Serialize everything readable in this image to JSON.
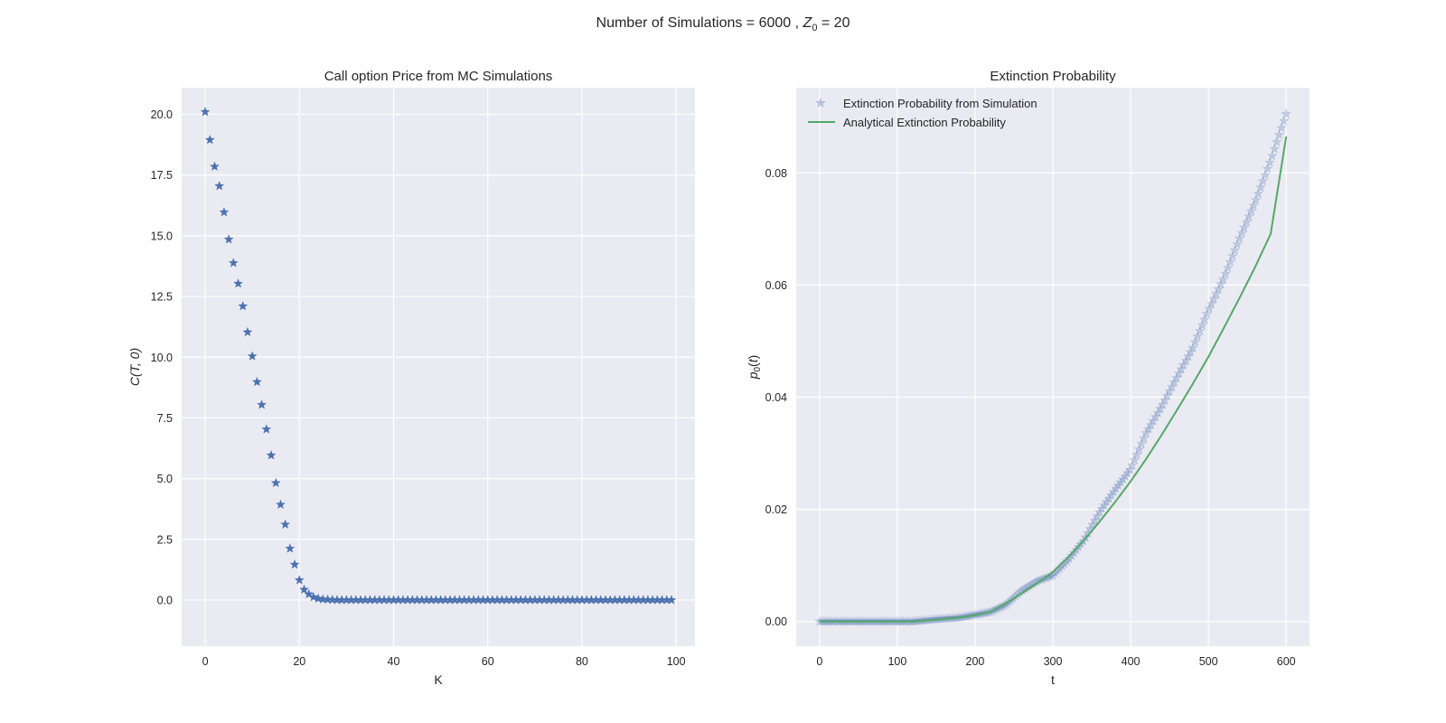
{
  "figure": {
    "suptitle_prefix": "Number of Simulations = 6000 , ",
    "suptitle_math": "Z",
    "suptitle_sub": "0",
    "suptitle_suffix": " = 20",
    "background": "#ffffff",
    "axes_background": "#EAEAF2",
    "grid_color": "#ffffff"
  },
  "chart_data": [
    {
      "type": "scatter",
      "title": "Call option Price from MC Simulations",
      "xlabel": "K",
      "ylabel": "C(T, 0)",
      "xlim": [
        -5,
        104
      ],
      "ylim": [
        -1.9,
        21.1
      ],
      "xticks": [
        0,
        20,
        40,
        60,
        80,
        100
      ],
      "yticks": [
        0.0,
        2.5,
        5.0,
        7.5,
        10.0,
        12.5,
        15.0,
        17.5,
        20.0
      ],
      "ytick_labels": [
        "0.0",
        "2.5",
        "5.0",
        "7.5",
        "10.0",
        "12.5",
        "15.0",
        "17.5",
        "20.0"
      ],
      "grid": true,
      "marker": "star",
      "color": "#4C72B0",
      "series": [
        {
          "values_head": [
            20.1,
            18.95,
            17.85,
            17.05,
            15.97,
            14.85,
            13.88,
            13.03,
            12.1,
            11.03,
            10.04,
            8.98,
            8.04,
            7.03,
            5.96,
            4.82,
            3.93,
            3.11,
            2.12,
            1.46,
            0.82,
            0.43,
            0.24,
            0.12,
            0.06,
            0.03,
            0.02,
            0.01
          ],
          "tail_value": 0.0,
          "x_start": 0,
          "x_end": 99
        }
      ]
    },
    {
      "type": "line",
      "title": "Extinction Probability",
      "xlabel": "t",
      "ylabel": "p0(t)",
      "xlim": [
        -30,
        630
      ],
      "ylim": [
        -0.0044,
        0.0952
      ],
      "xticks": [
        0,
        100,
        200,
        300,
        400,
        500,
        600
      ],
      "yticks": [
        0.0,
        0.02,
        0.04,
        0.06,
        0.08
      ],
      "ytick_labels": [
        "0.00",
        "0.02",
        "0.04",
        "0.06",
        "0.08"
      ],
      "grid": true,
      "legend_position": "upper-left",
      "series": [
        {
          "name": "Extinction Probability from Simulation",
          "style": "star-markers",
          "color": "#4C72B0",
          "knots_t": [
            0,
            120,
            150,
            180,
            200,
            220,
            240,
            260,
            280,
            300,
            320,
            340,
            360,
            380,
            400,
            420,
            440,
            460,
            480,
            500,
            520,
            540,
            560,
            580,
            600
          ],
          "knots_p": [
            0.0,
            0.0,
            0.0004,
            0.0007,
            0.0012,
            0.0017,
            0.003,
            0.0055,
            0.0072,
            0.0082,
            0.011,
            0.0145,
            0.0195,
            0.0235,
            0.0272,
            0.0336,
            0.0384,
            0.0437,
            0.0488,
            0.0555,
            0.0613,
            0.0683,
            0.0748,
            0.0822,
            0.0905
          ]
        },
        {
          "name": "Analytical Extinction Probability",
          "style": "line",
          "color": "#55A868",
          "knots_t": [
            0,
            120,
            150,
            180,
            200,
            220,
            240,
            260,
            280,
            300,
            320,
            340,
            360,
            380,
            400,
            420,
            440,
            460,
            480,
            500,
            520,
            540,
            560,
            580,
            600
          ],
          "knots_p": [
            0.0,
            0.0,
            0.0003,
            0.0007,
            0.0011,
            0.0017,
            0.0033,
            0.005,
            0.0068,
            0.0088,
            0.0115,
            0.0145,
            0.0178,
            0.0213,
            0.025,
            0.029,
            0.0333,
            0.0378,
            0.0424,
            0.0472,
            0.0524,
            0.0577,
            0.0632,
            0.0691,
            0.0865
          ]
        }
      ]
    }
  ]
}
